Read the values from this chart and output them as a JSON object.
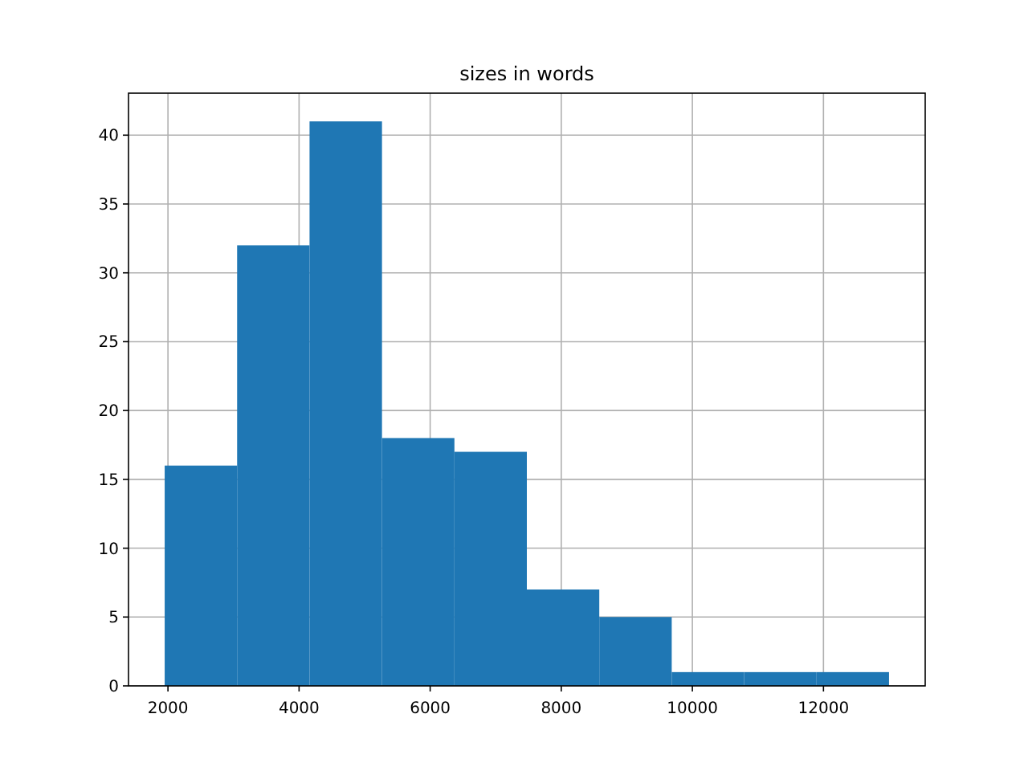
{
  "chart_data": {
    "type": "histogram",
    "title": "sizes in words",
    "bins": [
      1950,
      3055,
      4160,
      5265,
      6370,
      7475,
      8580,
      9685,
      10790,
      11895,
      13000
    ],
    "values": [
      16,
      32,
      41,
      18,
      17,
      7,
      5,
      1,
      1,
      1
    ],
    "color": "#1f77b4",
    "xlim": [
      1398,
      13552
    ],
    "xticks": [
      2000,
      4000,
      6000,
      8000,
      10000,
      12000
    ],
    "ylim": [
      0,
      43.05
    ],
    "yticks": [
      0,
      5,
      10,
      15,
      20,
      25,
      30,
      35,
      40
    ],
    "grid": true
  }
}
